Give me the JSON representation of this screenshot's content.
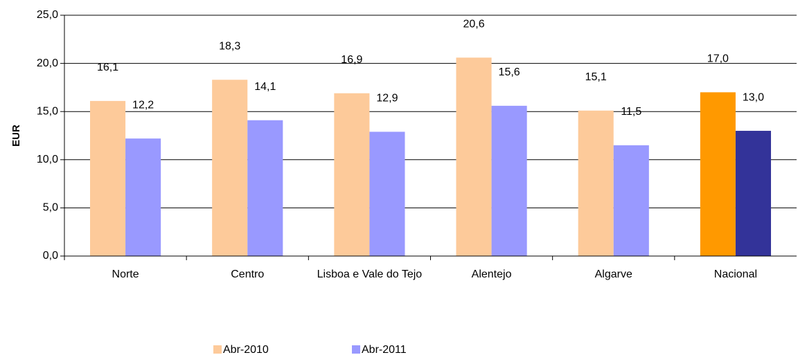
{
  "chart_data": {
    "type": "bar",
    "y_label": "EUR",
    "categories": [
      "Norte",
      "Centro",
      "Lisboa e Vale do Tejo",
      "Alentejo",
      "Algarve",
      "Nacional"
    ],
    "series": [
      {
        "name": "Abr-2010",
        "color": "#fdca9a",
        "colors": [
          "#fdca9a",
          "#fdca9a",
          "#fdca9a",
          "#fdca9a",
          "#fdca9a",
          "#ff9900"
        ],
        "values": [
          16.1,
          18.3,
          16.9,
          20.6,
          15.1,
          17.0
        ],
        "value_labels": [
          "16,1",
          "18,3",
          "16,9",
          "20,6",
          "15,1",
          "17,0"
        ]
      },
      {
        "name": "Abr-2011",
        "color": "#9999ff",
        "colors": [
          "#9999ff",
          "#9999ff",
          "#9999ff",
          "#9999ff",
          "#9999ff",
          "#333399"
        ],
        "values": [
          12.2,
          14.1,
          12.9,
          15.6,
          11.5,
          13.0
        ],
        "value_labels": [
          "12,2",
          "14,1",
          "12,9",
          "15,6",
          "11,5",
          "13,0"
        ]
      }
    ],
    "ylim": [
      0,
      25
    ],
    "yticks": [
      {
        "value": 0,
        "label": "0,0"
      },
      {
        "value": 5,
        "label": "5,0"
      },
      {
        "value": 10,
        "label": "10,0"
      },
      {
        "value": 15,
        "label": "15,0"
      },
      {
        "value": 20,
        "label": "20,0"
      },
      {
        "value": 25,
        "label": "25,0"
      }
    ],
    "grid": true,
    "legend": "bottom"
  }
}
